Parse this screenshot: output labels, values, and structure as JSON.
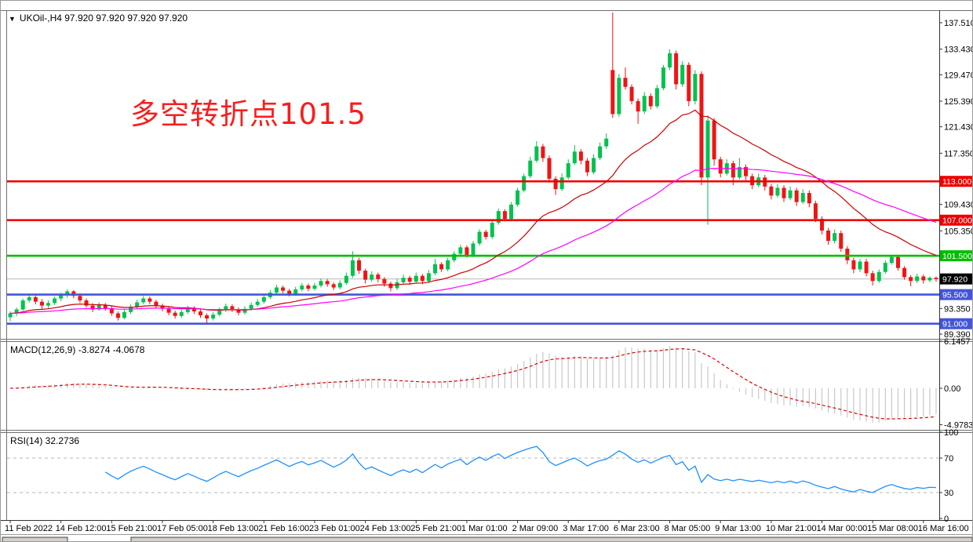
{
  "header": {
    "arrow": "▼",
    "symbol_text": "UKOil-,H4  97.920 97.920 97.920 97.920"
  },
  "annotation": {
    "text": "多空转折点101.5",
    "color": "#f91d1d"
  },
  "colors": {
    "candle_up": "#00c24f",
    "candle_down": "#f01414",
    "ma_fast": "#c80000",
    "ma_slow": "#ff00ff",
    "macd_hist": "#c8c8c8",
    "macd_signal": "#e00000",
    "rsi_line": "#1e90ff",
    "rsi_level": "#b4b4b4",
    "current_price_line": "#b8b8b8",
    "axis_text": "#000000",
    "chrome": "#707070"
  },
  "chart_data": {
    "type": "candlestick+indicators",
    "symbol": "UKOil-",
    "timeframe": "H4",
    "quote": {
      "open": "97.920",
      "high": "97.920",
      "low": "97.920",
      "close": "97.920"
    },
    "price_axis_ticks": [
      "137.510",
      "133.430",
      "129.470",
      "125.390",
      "121.430",
      "117.350",
      "109.430",
      "105.350",
      "93.350",
      "89.390"
    ],
    "level_lines": [
      {
        "price": 113.0,
        "label": "113.000",
        "color": "#ee0000"
      },
      {
        "price": 107.0,
        "label": "107.000",
        "color": "#ee0000"
      },
      {
        "price": 101.5,
        "label": "101.500",
        "color": "#00bd00"
      },
      {
        "price": 95.5,
        "label": "95.500",
        "color": "#4356d8"
      },
      {
        "price": 91.0,
        "label": "91.000",
        "color": "#4356d8"
      }
    ],
    "current_price": {
      "value": 97.92,
      "label": "97.920"
    },
    "time_labels": [
      "11 Feb 2022",
      "14 Feb 12:00",
      "15 Feb 21:00",
      "17 Feb 05:00",
      "18 Feb 13:00",
      "21 Feb 16:00",
      "23 Feb 01:00",
      "24 Feb 13:00",
      "25 Feb 21:00",
      "1 Mar 01:00",
      "2 Mar 09:00",
      "3 Mar 17:00",
      "6 Mar 23:00",
      "8 Mar 05:00",
      "9 Mar 13:00",
      "10 Mar 21:00",
      "14 Mar 00:00",
      "15 Mar 08:00",
      "16 Mar 16:00"
    ],
    "bars_per_label": 8,
    "candles": [
      [
        92.0,
        92.9,
        91.4,
        92.6
      ],
      [
        92.6,
        93.5,
        92.2,
        93.2
      ],
      [
        93.2,
        94.9,
        93.0,
        94.6
      ],
      [
        94.6,
        95.6,
        94.3,
        95.1
      ],
      [
        95.1,
        95.4,
        94.0,
        94.4
      ],
      [
        94.4,
        94.8,
        93.3,
        93.8
      ],
      [
        93.8,
        94.6,
        93.4,
        94.2
      ],
      [
        94.2,
        95.2,
        93.9,
        94.9
      ],
      [
        94.9,
        95.8,
        94.5,
        95.4
      ],
      [
        95.4,
        96.3,
        95.0,
        96.0
      ],
      [
        96.0,
        96.2,
        94.9,
        95.3
      ],
      [
        95.3,
        95.7,
        94.2,
        94.6
      ],
      [
        94.6,
        94.9,
        93.5,
        93.8
      ],
      [
        93.8,
        94.2,
        92.8,
        93.2
      ],
      [
        93.2,
        94.3,
        93.0,
        93.9
      ],
      [
        93.9,
        94.2,
        93.0,
        93.4
      ],
      [
        93.4,
        93.7,
        92.2,
        92.6
      ],
      [
        92.6,
        92.9,
        91.5,
        91.9
      ],
      [
        91.9,
        93.2,
        91.7,
        92.8
      ],
      [
        92.8,
        94.0,
        92.5,
        93.6
      ],
      [
        93.6,
        94.7,
        93.3,
        94.3
      ],
      [
        94.3,
        95.3,
        94.0,
        94.9
      ],
      [
        94.9,
        95.2,
        94.0,
        94.4
      ],
      [
        94.4,
        94.7,
        93.4,
        93.8
      ],
      [
        93.8,
        94.1,
        92.9,
        93.3
      ],
      [
        93.3,
        93.6,
        92.3,
        92.7
      ],
      [
        92.7,
        93.0,
        91.8,
        92.2
      ],
      [
        92.2,
        93.2,
        91.9,
        92.8
      ],
      [
        92.8,
        93.8,
        92.5,
        93.4
      ],
      [
        93.4,
        93.7,
        92.5,
        92.9
      ],
      [
        92.9,
        93.2,
        91.9,
        92.3
      ],
      [
        92.3,
        92.6,
        91.0,
        91.8
      ],
      [
        91.8,
        92.8,
        91.5,
        92.4
      ],
      [
        92.4,
        93.5,
        92.1,
        93.1
      ],
      [
        93.1,
        94.1,
        92.8,
        93.7
      ],
      [
        93.7,
        94.0,
        92.8,
        93.2
      ],
      [
        93.2,
        93.5,
        92.3,
        92.7
      ],
      [
        92.7,
        93.7,
        92.4,
        93.3
      ],
      [
        93.3,
        94.3,
        93.0,
        93.9
      ],
      [
        93.9,
        94.8,
        93.6,
        94.4
      ],
      [
        94.4,
        95.5,
        94.1,
        95.1
      ],
      [
        95.1,
        96.2,
        94.8,
        95.8
      ],
      [
        95.8,
        97.0,
        95.5,
        96.6
      ],
      [
        96.6,
        96.9,
        95.7,
        96.1
      ],
      [
        96.1,
        96.4,
        95.2,
        95.6
      ],
      [
        95.6,
        96.7,
        95.3,
        96.3
      ],
      [
        96.3,
        97.3,
        96.0,
        96.9
      ],
      [
        96.9,
        97.2,
        96.0,
        96.4
      ],
      [
        96.4,
        97.3,
        96.1,
        96.9
      ],
      [
        96.9,
        98.0,
        96.6,
        97.6
      ],
      [
        97.6,
        97.9,
        96.7,
        97.1
      ],
      [
        97.1,
        97.4,
        96.2,
        96.6
      ],
      [
        96.6,
        97.7,
        96.3,
        97.3
      ],
      [
        97.3,
        98.9,
        97.0,
        98.4
      ],
      [
        98.4,
        102.2,
        98.1,
        100.8
      ],
      [
        100.8,
        101.2,
        98.7,
        99.2
      ],
      [
        99.2,
        99.5,
        97.2,
        97.8
      ],
      [
        97.8,
        99.1,
        97.5,
        98.6
      ],
      [
        98.6,
        98.9,
        97.4,
        97.9
      ],
      [
        97.9,
        98.2,
        96.7,
        97.2
      ],
      [
        97.2,
        97.5,
        96.0,
        96.5
      ],
      [
        96.5,
        97.9,
        96.2,
        97.4
      ],
      [
        97.4,
        98.6,
        97.1,
        98.1
      ],
      [
        98.1,
        98.4,
        97.0,
        97.5
      ],
      [
        97.5,
        98.9,
        97.2,
        98.4
      ],
      [
        98.4,
        98.7,
        97.1,
        97.6
      ],
      [
        97.6,
        99.3,
        97.3,
        98.8
      ],
      [
        98.8,
        101.0,
        98.5,
        100.2
      ],
      [
        100.2,
        100.5,
        99.0,
        99.4
      ],
      [
        99.4,
        101.2,
        99.1,
        100.8
      ],
      [
        100.8,
        102.2,
        100.5,
        101.8
      ],
      [
        101.8,
        103.2,
        101.4,
        102.8
      ],
      [
        102.8,
        103.1,
        101.2,
        101.6
      ],
      [
        101.6,
        103.8,
        101.3,
        103.4
      ],
      [
        103.4,
        105.6,
        103.1,
        105.2
      ],
      [
        105.2,
        105.5,
        104.0,
        104.4
      ],
      [
        104.4,
        107.0,
        104.1,
        106.6
      ],
      [
        106.6,
        108.8,
        106.3,
        108.4
      ],
      [
        108.4,
        108.7,
        106.8,
        107.2
      ],
      [
        107.2,
        109.8,
        106.9,
        109.4
      ],
      [
        109.4,
        112.0,
        109.1,
        111.6
      ],
      [
        111.6,
        114.2,
        111.3,
        113.8
      ],
      [
        113.8,
        116.8,
        113.5,
        116.2
      ],
      [
        116.2,
        119.2,
        115.9,
        118.4
      ],
      [
        118.4,
        118.8,
        116.0,
        116.6
      ],
      [
        116.6,
        117.0,
        112.8,
        113.4
      ],
      [
        113.4,
        113.8,
        110.9,
        111.8
      ],
      [
        111.8,
        114.2,
        111.5,
        113.6
      ],
      [
        113.6,
        116.4,
        113.3,
        115.8
      ],
      [
        115.8,
        118.6,
        115.5,
        117.6
      ],
      [
        117.6,
        118.0,
        115.6,
        116.2
      ],
      [
        116.2,
        116.6,
        113.8,
        114.4
      ],
      [
        114.4,
        117.2,
        114.1,
        116.6
      ],
      [
        116.6,
        119.0,
        116.3,
        118.4
      ],
      [
        118.4,
        120.4,
        118.0,
        119.6
      ],
      [
        130.2,
        139.1,
        122.8,
        123.4
      ],
      [
        123.4,
        129.6,
        123.0,
        129.0
      ],
      [
        129.0,
        130.6,
        127.2,
        127.6
      ],
      [
        127.6,
        128.0,
        124.9,
        125.4
      ],
      [
        125.4,
        125.8,
        121.9,
        123.8
      ],
      [
        123.8,
        126.8,
        123.4,
        126.2
      ],
      [
        126.2,
        126.6,
        124.1,
        124.6
      ],
      [
        124.6,
        127.9,
        124.3,
        127.4
      ],
      [
        127.4,
        131.0,
        127.1,
        130.6
      ],
      [
        130.6,
        133.4,
        130.2,
        132.8
      ],
      [
        132.8,
        133.2,
        127.2,
        128.0
      ],
      [
        128.0,
        131.6,
        127.6,
        131.0
      ],
      [
        131.0,
        131.4,
        124.6,
        125.4
      ],
      [
        125.4,
        130.2,
        124.9,
        129.6
      ],
      [
        129.6,
        130.0,
        112.4,
        113.6
      ],
      [
        113.6,
        123.2,
        106.3,
        122.4
      ],
      [
        122.4,
        122.8,
        115.4,
        116.4
      ],
      [
        116.4,
        116.8,
        113.6,
        114.2
      ],
      [
        114.2,
        116.4,
        113.9,
        115.8
      ],
      [
        115.8,
        116.2,
        112.4,
        113.6
      ],
      [
        113.6,
        116.6,
        113.3,
        115.2
      ],
      [
        115.2,
        115.6,
        113.2,
        113.8
      ],
      [
        113.8,
        114.2,
        111.8,
        112.4
      ],
      [
        112.4,
        114.2,
        112.1,
        113.6
      ],
      [
        113.6,
        114.0,
        111.6,
        112.2
      ],
      [
        112.2,
        112.6,
        110.2,
        110.8
      ],
      [
        110.8,
        112.6,
        110.5,
        112.0
      ],
      [
        112.0,
        112.4,
        109.8,
        110.4
      ],
      [
        110.4,
        112.2,
        110.1,
        111.6
      ],
      [
        111.6,
        112.0,
        109.2,
        109.8
      ],
      [
        109.8,
        111.8,
        109.5,
        111.2
      ],
      [
        111.2,
        111.6,
        109.0,
        109.6
      ],
      [
        109.6,
        110.0,
        106.7,
        107.2
      ],
      [
        107.2,
        107.6,
        104.8,
        105.4
      ],
      [
        105.4,
        105.8,
        103.2,
        103.8
      ],
      [
        103.8,
        105.6,
        103.4,
        105.0
      ],
      [
        105.0,
        105.4,
        102.1,
        102.6
      ],
      [
        102.6,
        103.0,
        100.2,
        100.8
      ],
      [
        100.8,
        101.2,
        98.8,
        99.4
      ],
      [
        99.4,
        101.0,
        99.0,
        100.6
      ],
      [
        100.6,
        101.0,
        98.3,
        98.8
      ],
      [
        98.8,
        99.2,
        96.9,
        97.6
      ],
      [
        97.6,
        99.4,
        97.3,
        99.0
      ],
      [
        99.0,
        100.8,
        98.7,
        100.4
      ],
      [
        100.4,
        101.6,
        100.1,
        101.3
      ],
      [
        101.3,
        101.6,
        99.2,
        99.6
      ],
      [
        99.6,
        99.9,
        97.8,
        98.2
      ],
      [
        98.2,
        98.5,
        96.8,
        97.6
      ],
      [
        97.6,
        98.7,
        97.3,
        98.3
      ],
      [
        98.3,
        98.6,
        97.2,
        97.7
      ],
      [
        97.7,
        98.3,
        97.4,
        98.1
      ],
      [
        98.1,
        98.3,
        97.5,
        97.9
      ]
    ],
    "moving_averages": [
      {
        "name": "MA fast",
        "period": 21,
        "color": "#c80000"
      },
      {
        "name": "MA slow",
        "period": 55,
        "color": "#ff00ff"
      }
    ],
    "macd": {
      "label": "MACD(12,26,9) -3.8274 -4.0678",
      "fast": 12,
      "slow": 26,
      "signal": 9,
      "main_value": "-3.8274",
      "signal_value": "-4.0678",
      "axis_ticks": [
        "6.1457",
        "0.00",
        "-4.9783"
      ]
    },
    "rsi": {
      "label": "RSI(14) 32.2736",
      "period": 14,
      "value": "32.2736",
      "axis_ticks": [
        "100",
        "70",
        "30",
        "0"
      ],
      "levels": [
        70,
        30
      ]
    }
  }
}
